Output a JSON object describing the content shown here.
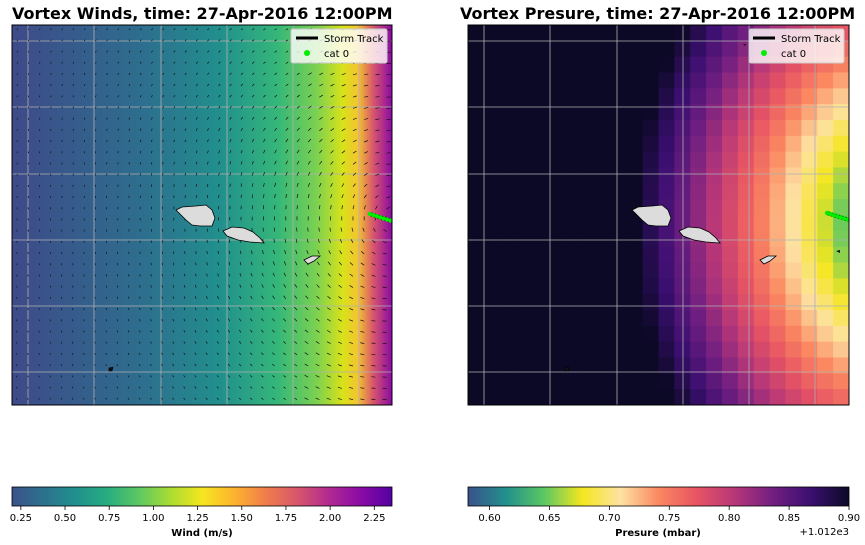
{
  "chart_data": [
    {
      "type": "heatmap",
      "title": "Vortex Winds, time: 27-Apr-2016 12:00PM",
      "colorbar": {
        "label": "Wind (m/s)",
        "ticks": [
          "0.25",
          "0.50",
          "0.75",
          "1.00",
          "1.25",
          "1.50",
          "1.75",
          "2.00",
          "2.25"
        ],
        "tick_values": [
          0.25,
          0.5,
          0.75,
          1.0,
          1.25,
          1.5,
          1.75,
          2.0,
          2.25
        ],
        "range": [
          0.2,
          2.35
        ],
        "colormap": "plasma-viridis"
      },
      "legend": {
        "placement": "top-right",
        "entries": [
          {
            "label": "Storm Track",
            "color": "#000000",
            "marker": "line"
          },
          {
            "label": "cat 0",
            "color": "#00ee00",
            "marker": "dot"
          }
        ]
      },
      "grid": true,
      "overlay": "wind-vectors (quiver)"
    },
    {
      "type": "heatmap",
      "title": "Vortex Presure, time: 27-Apr-2016 12:00PM",
      "colorbar": {
        "label": "Presure (mbar)",
        "ticks": [
          "0.60",
          "0.65",
          "0.70",
          "0.75",
          "0.80",
          "0.85",
          "0.90"
        ],
        "tick_values": [
          0.6,
          0.65,
          0.7,
          0.75,
          0.8,
          0.85,
          0.9
        ],
        "range": [
          0.582,
          0.9
        ],
        "offset": "+1.012e3",
        "colormap": "magma-reversed"
      },
      "legend": {
        "placement": "top-right",
        "entries": [
          {
            "label": "Storm Track",
            "color": "#000000",
            "marker": "line"
          },
          {
            "label": "cat 0",
            "color": "#00ee00",
            "marker": "dot"
          }
        ]
      },
      "grid": true,
      "cells": "24x24 grid"
    }
  ],
  "colors": {
    "land": "#dcdcdc",
    "track": "#00ee00"
  }
}
